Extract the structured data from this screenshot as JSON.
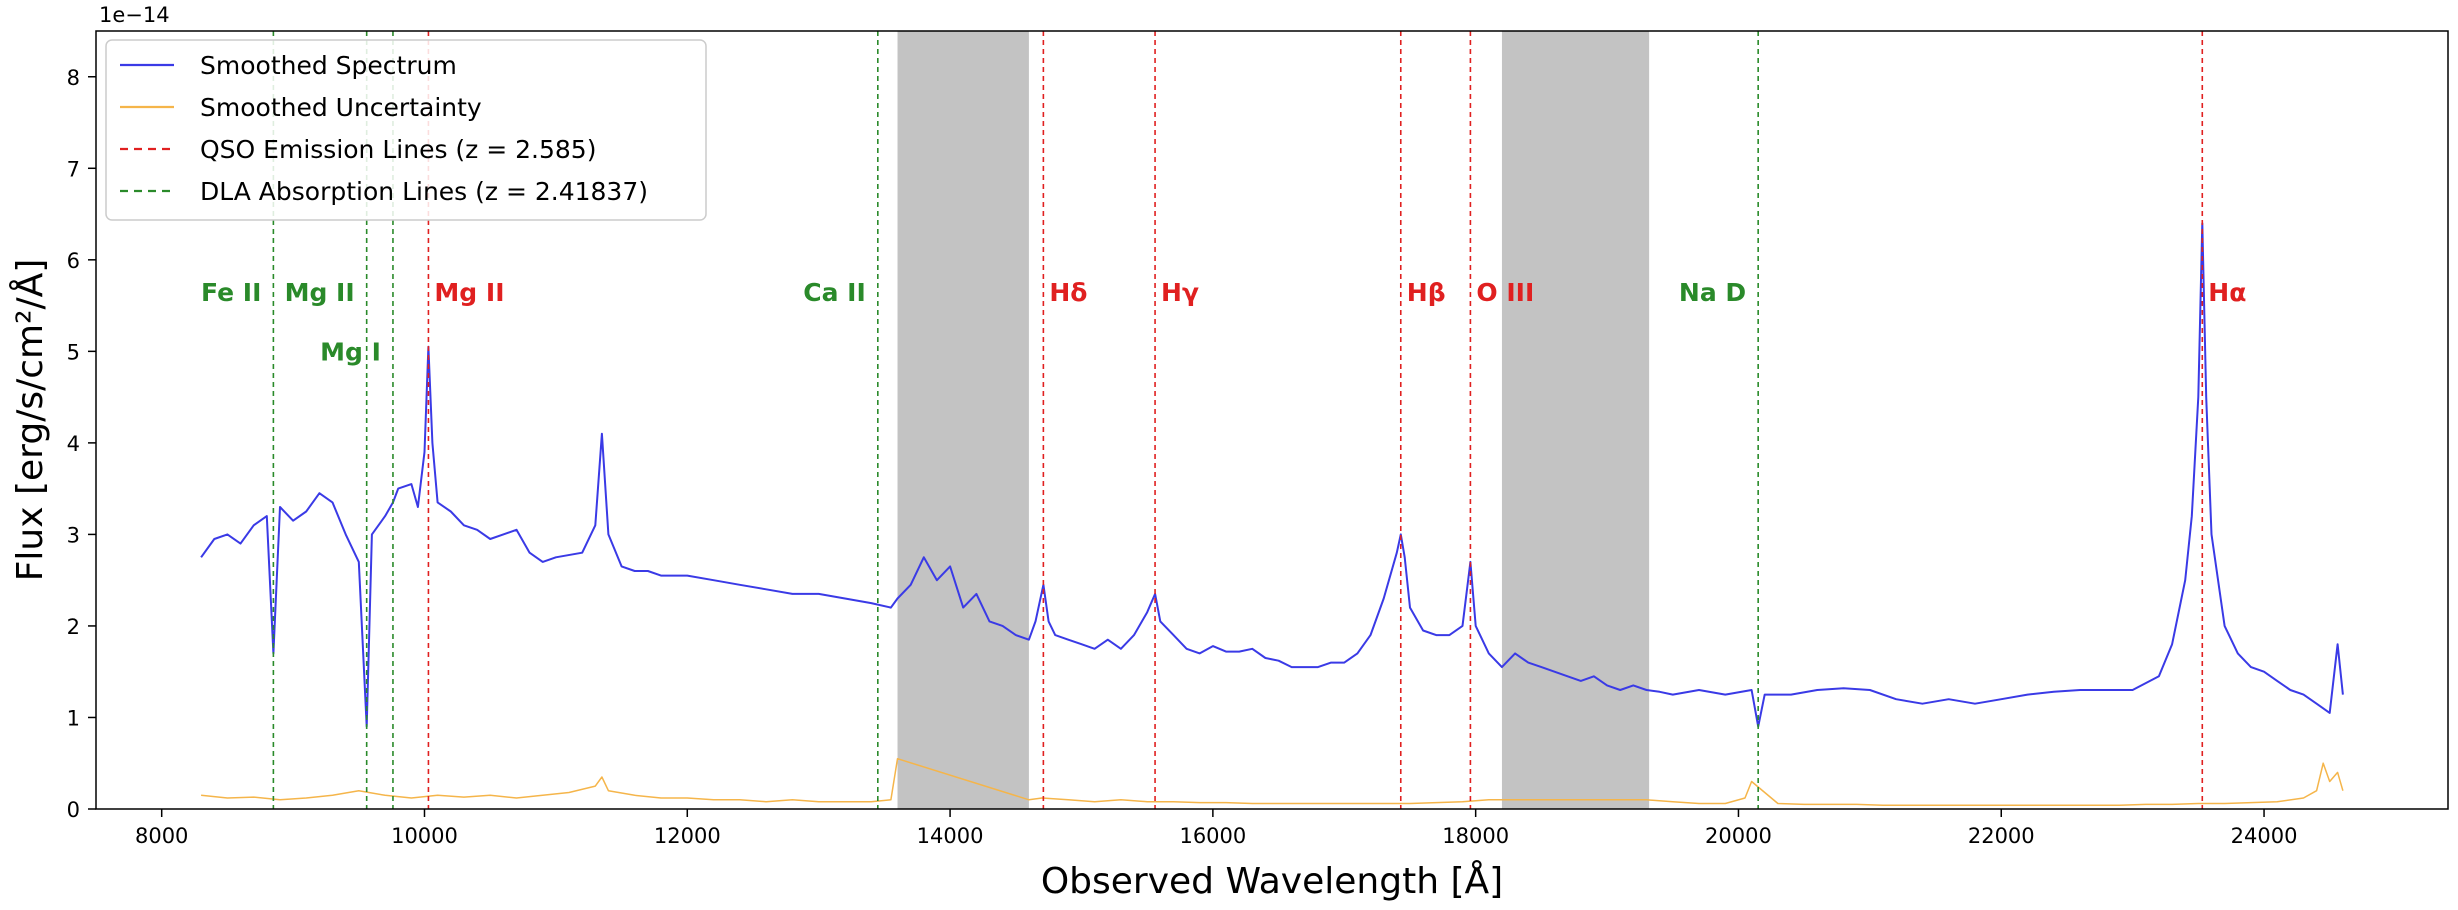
{
  "chart_data": {
    "type": "line",
    "xlabel": "Observed Wavelength [Å]",
    "ylabel": "Flux [erg/s/cm²/Å]",
    "y_offset_text": "1e−14",
    "xlim": [
      7500,
      25400
    ],
    "ylim": [
      0,
      8.5
    ],
    "x_ticks": [
      8000,
      10000,
      12000,
      14000,
      16000,
      18000,
      20000,
      22000,
      24000
    ],
    "y_ticks": [
      0,
      1,
      2,
      3,
      4,
      5,
      6,
      7,
      8
    ],
    "grid": false,
    "legend_position": "upper-left",
    "legend": [
      {
        "label": "Smoothed Spectrum",
        "style": "solid",
        "color": "#3a3ae6"
      },
      {
        "label": "Smoothed Uncertainty",
        "style": "solid",
        "color": "#f5b54a"
      },
      {
        "label": "QSO Emission Lines (z = 2.585)",
        "style": "dashed",
        "color": "#e02020"
      },
      {
        "label": "DLA Absorption Lines (z = 2.41837)",
        "style": "dashed",
        "color": "#2a8a2a"
      }
    ],
    "shaded_regions": [
      {
        "x0": 13600,
        "x1": 14600,
        "color": "#c3c3c3"
      },
      {
        "x0": 18200,
        "x1": 19320,
        "color": "#c3c3c3"
      }
    ],
    "emission_lines": [
      {
        "label": "Mg II",
        "x": 10030,
        "label_y": 5.65
      },
      {
        "label": "Hδ",
        "x": 14710,
        "label_y": 5.65
      },
      {
        "label": "Hγ",
        "x": 15560,
        "label_y": 5.65
      },
      {
        "label": "Hβ",
        "x": 17430,
        "label_y": 5.65
      },
      {
        "label": "O III",
        "x": 17960,
        "label_y": 5.65
      },
      {
        "label": "Hα",
        "x": 23530,
        "label_y": 5.65
      }
    ],
    "absorption_lines": [
      {
        "label": "Fe II",
        "x": 8850,
        "label_y": 5.65
      },
      {
        "label": "Mg II",
        "x": 9560,
        "label_y": 5.65
      },
      {
        "label": "Mg I",
        "x": 9760,
        "label_y": 5.0
      },
      {
        "label": "Ca II",
        "x": 13450,
        "label_y": 5.65
      },
      {
        "label": "Na D",
        "x": 20150,
        "label_y": 5.65
      }
    ],
    "series": [
      {
        "name": "Smoothed Spectrum",
        "color": "#3a3ae6",
        "x": [
          8300,
          8400,
          8500,
          8600,
          8700,
          8800,
          8850,
          8900,
          9000,
          9100,
          9200,
          9300,
          9400,
          9500,
          9560,
          9600,
          9700,
          9760,
          9800,
          9900,
          9950,
          10000,
          10030,
          10060,
          10100,
          10200,
          10300,
          10400,
          10500,
          10600,
          10700,
          10800,
          10900,
          11000,
          11200,
          11300,
          11350,
          11400,
          11500,
          11600,
          11700,
          11800,
          12000,
          12200,
          12400,
          12600,
          12800,
          13000,
          13200,
          13400,
          13550,
          13600,
          13700,
          13800,
          13900,
          14000,
          14100,
          14200,
          14300,
          14400,
          14500,
          14600,
          14650,
          14710,
          14750,
          14800,
          14900,
          15000,
          15100,
          15200,
          15300,
          15400,
          15500,
          15560,
          15600,
          15700,
          15800,
          15900,
          16000,
          16100,
          16200,
          16300,
          16400,
          16500,
          16600,
          16700,
          16800,
          16900,
          17000,
          17100,
          17200,
          17300,
          17400,
          17430,
          17460,
          17500,
          17600,
          17700,
          17800,
          17900,
          17960,
          18000,
          18100,
          18200,
          18300,
          18400,
          18500,
          18600,
          18700,
          18800,
          18900,
          19000,
          19100,
          19200,
          19300,
          19400,
          19500,
          19700,
          19900,
          20100,
          20150,
          20200,
          20400,
          20600,
          20800,
          21000,
          21200,
          21400,
          21600,
          21800,
          22000,
          22200,
          22400,
          22600,
          22800,
          23000,
          23200,
          23300,
          23400,
          23450,
          23500,
          23530,
          23560,
          23600,
          23700,
          23800,
          23900,
          24000,
          24100,
          24200,
          24300,
          24400,
          24500,
          24560,
          24600
        ],
        "y": [
          2.75,
          2.95,
          3.0,
          2.9,
          3.1,
          3.2,
          1.7,
          3.3,
          3.15,
          3.25,
          3.45,
          3.35,
          3.0,
          2.7,
          0.9,
          3.0,
          3.2,
          3.35,
          3.5,
          3.55,
          3.3,
          3.9,
          5.05,
          4.0,
          3.35,
          3.25,
          3.1,
          3.05,
          2.95,
          3.0,
          3.05,
          2.8,
          2.7,
          2.75,
          2.8,
          3.1,
          4.1,
          3.0,
          2.65,
          2.6,
          2.6,
          2.55,
          2.55,
          2.5,
          2.45,
          2.4,
          2.35,
          2.35,
          2.3,
          2.25,
          2.2,
          2.3,
          2.45,
          2.75,
          2.5,
          2.65,
          2.2,
          2.35,
          2.05,
          2.0,
          1.9,
          1.85,
          2.05,
          2.45,
          2.05,
          1.9,
          1.85,
          1.8,
          1.75,
          1.85,
          1.75,
          1.9,
          2.15,
          2.35,
          2.05,
          1.9,
          1.75,
          1.7,
          1.78,
          1.72,
          1.72,
          1.75,
          1.65,
          1.62,
          1.55,
          1.55,
          1.55,
          1.6,
          1.6,
          1.7,
          1.9,
          2.3,
          2.8,
          3.0,
          2.75,
          2.2,
          1.95,
          1.9,
          1.9,
          2.0,
          2.7,
          2.0,
          1.7,
          1.55,
          1.7,
          1.6,
          1.55,
          1.5,
          1.45,
          1.4,
          1.45,
          1.35,
          1.3,
          1.35,
          1.3,
          1.28,
          1.25,
          1.3,
          1.25,
          1.3,
          0.9,
          1.25,
          1.25,
          1.3,
          1.32,
          1.3,
          1.2,
          1.15,
          1.2,
          1.15,
          1.2,
          1.25,
          1.28,
          1.3,
          1.3,
          1.3,
          1.45,
          1.8,
          2.5,
          3.2,
          4.5,
          6.4,
          4.5,
          3.0,
          2.0,
          1.7,
          1.55,
          1.5,
          1.4,
          1.3,
          1.25,
          1.15,
          1.05,
          1.8,
          1.25
        ]
      },
      {
        "name": "Smoothed Uncertainty",
        "color": "#f5b54a",
        "x": [
          8300,
          8500,
          8700,
          8900,
          9100,
          9300,
          9500,
          9700,
          9900,
          10100,
          10300,
          10500,
          10700,
          10900,
          11100,
          11300,
          11350,
          11400,
          11600,
          11800,
          12000,
          12200,
          12400,
          12600,
          12800,
          13000,
          13200,
          13400,
          13550,
          13600,
          14600,
          14700,
          14900,
          15100,
          15300,
          15500,
          15700,
          15900,
          16100,
          16300,
          16500,
          16700,
          16900,
          17100,
          17300,
          17500,
          17700,
          17900,
          18100,
          19300,
          19500,
          19700,
          19900,
          20050,
          20100,
          20300,
          20500,
          20700,
          20900,
          21100,
          21300,
          21500,
          21700,
          21900,
          22100,
          22300,
          22500,
          22700,
          22900,
          23100,
          23300,
          23500,
          23700,
          23900,
          24100,
          24300,
          24400,
          24450,
          24500,
          24560,
          24600
        ],
        "y": [
          0.15,
          0.12,
          0.13,
          0.1,
          0.12,
          0.15,
          0.2,
          0.15,
          0.12,
          0.15,
          0.13,
          0.15,
          0.12,
          0.15,
          0.18,
          0.25,
          0.35,
          0.2,
          0.15,
          0.12,
          0.12,
          0.1,
          0.1,
          0.08,
          0.1,
          0.08,
          0.08,
          0.08,
          0.1,
          0.55,
          0.1,
          0.12,
          0.1,
          0.08,
          0.1,
          0.08,
          0.08,
          0.07,
          0.07,
          0.06,
          0.06,
          0.06,
          0.06,
          0.06,
          0.06,
          0.06,
          0.07,
          0.08,
          0.1,
          0.1,
          0.08,
          0.06,
          0.06,
          0.12,
          0.3,
          0.06,
          0.05,
          0.05,
          0.05,
          0.04,
          0.04,
          0.04,
          0.04,
          0.04,
          0.04,
          0.04,
          0.04,
          0.04,
          0.04,
          0.05,
          0.05,
          0.06,
          0.06,
          0.07,
          0.08,
          0.12,
          0.2,
          0.5,
          0.3,
          0.4,
          0.2
        ]
      }
    ]
  }
}
